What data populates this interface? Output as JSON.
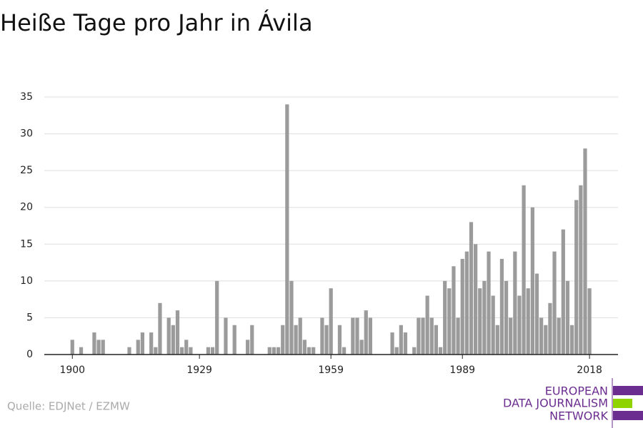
{
  "chart_data": {
    "type": "bar",
    "title": "Heiße Tage pro Jahr in Ávila",
    "x": [
      1900,
      1902,
      1905,
      1906,
      1907,
      1913,
      1915,
      1916,
      1918,
      1919,
      1920,
      1922,
      1923,
      1924,
      1925,
      1926,
      1927,
      1931,
      1932,
      1933,
      1935,
      1937,
      1940,
      1941,
      1945,
      1946,
      1947,
      1948,
      1949,
      1950,
      1951,
      1952,
      1953,
      1954,
      1955,
      1957,
      1958,
      1959,
      1961,
      1962,
      1964,
      1965,
      1966,
      1967,
      1968,
      1973,
      1974,
      1975,
      1976,
      1978,
      1979,
      1980,
      1981,
      1982,
      1983,
      1984,
      1985,
      1986,
      1987,
      1988,
      1989,
      1990,
      1991,
      1992,
      1993,
      1994,
      1995,
      1996,
      1997,
      1998,
      1999,
      2000,
      2001,
      2002,
      2003,
      2004,
      2005,
      2006,
      2007,
      2008,
      2009,
      2010,
      2011,
      2012,
      2013,
      2014,
      2015,
      2016,
      2017,
      2018
    ],
    "values": [
      2,
      1,
      3,
      2,
      2,
      1,
      2,
      3,
      3,
      1,
      7,
      5,
      4,
      6,
      1,
      2,
      1,
      1,
      1,
      10,
      5,
      4,
      2,
      4,
      1,
      1,
      1,
      4,
      34,
      10,
      4,
      5,
      2,
      1,
      1,
      5,
      4,
      9,
      4,
      1,
      5,
      5,
      2,
      6,
      5,
      3,
      1,
      4,
      3,
      1,
      5,
      5,
      8,
      5,
      4,
      1,
      10,
      9,
      12,
      5,
      13,
      14,
      18,
      15,
      9,
      10,
      14,
      8,
      4,
      13,
      10,
      5,
      14,
      8,
      23,
      9,
      20,
      11,
      5,
      4,
      7,
      14,
      5,
      17,
      10,
      4,
      21,
      23,
      28,
      9
    ],
    "color": "#9b9b9b",
    "xlim": [
      1893.6,
      2024.5
    ],
    "xticks": [
      1900,
      1929,
      1959,
      1989,
      2018
    ],
    "ylim": [
      0,
      35
    ],
    "yticks": [
      0,
      5,
      10,
      15,
      20,
      25,
      30,
      35
    ],
    "grid": true,
    "source": "Quelle: EDJNet / EZMW",
    "logo": [
      "EUROPEAN",
      "DATA JOURNALISM",
      "NETWORK"
    ]
  }
}
